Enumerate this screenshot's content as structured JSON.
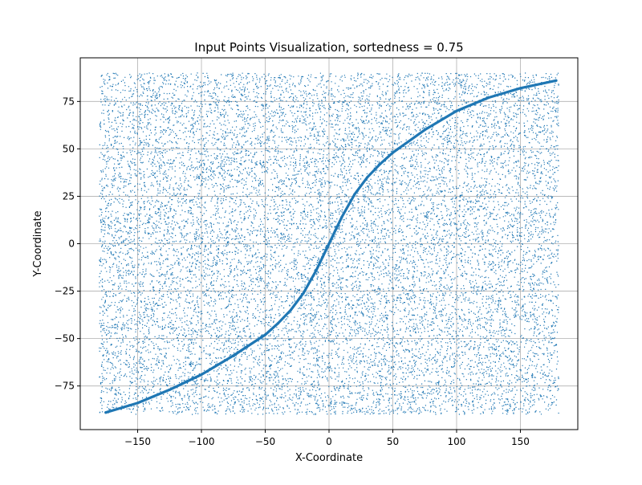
{
  "chart_data": {
    "type": "scatter",
    "title": "Input Points Visualization, sortedness = 0.75",
    "xlabel": "X-Coordinate",
    "ylabel": "Y-Coordinate",
    "xlim": [
      -195,
      195
    ],
    "ylim": [
      -98,
      98
    ],
    "xticks": [
      -150,
      -100,
      -50,
      0,
      50,
      100,
      150
    ],
    "yticks": [
      -75,
      -50,
      -25,
      0,
      25,
      50,
      75
    ],
    "xtick_labels": [
      "−150",
      "−100",
      "−50",
      "0",
      "50",
      "100",
      "150"
    ],
    "ytick_labels": [
      "−75",
      "−50",
      "−25",
      "0",
      "25",
      "50",
      "75"
    ],
    "grid": true,
    "legend": "none",
    "series": [
      {
        "kind": "uniform-random",
        "x_range": [
          -180,
          180
        ],
        "y_range": [
          -90,
          90
        ],
        "count": 15000,
        "color": "#1f77b4"
      },
      {
        "kind": "sorted-curve",
        "x": [
          -175,
          -150,
          -125,
          -100,
          -75,
          -50,
          -40,
          -30,
          -20,
          -10,
          -5,
          0,
          5,
          10,
          20,
          30,
          40,
          50,
          75,
          100,
          125,
          150,
          178
        ],
        "y": [
          -89,
          -84,
          -77,
          -69,
          -59,
          -48,
          -42,
          -35,
          -26,
          -14,
          -7,
          0,
          7,
          14,
          26,
          35,
          42,
          48,
          60,
          70,
          77,
          82,
          86
        ],
        "color": "#1f77b4"
      }
    ]
  }
}
